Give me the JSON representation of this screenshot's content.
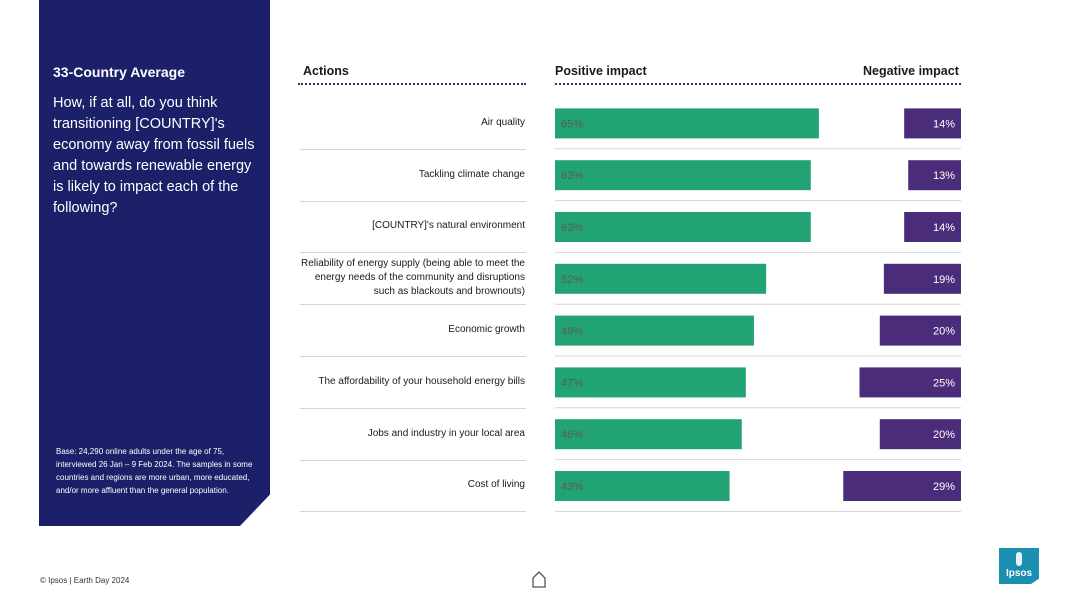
{
  "sidebar": {
    "title": "33-Country Average",
    "question": "How, if at all, do you think transitioning [COUNTRY]'s economy away from fossil fuels and towards renewable energy is likely to impact each of the following?",
    "base_note": "Base: 24,290 online adults under the age of 75, interviewed 26 Jan – 9 Feb 2024. The samples in some countries and regions are more urban, more educated, and/or more affluent than the general population."
  },
  "headers": {
    "actions": "Actions",
    "positive": "Positive impact",
    "negative": "Negative impact"
  },
  "footer": {
    "text": "© Ipsos | Earth Day 2024"
  },
  "logo": {
    "text": "Ipsos"
  },
  "colors": {
    "sidebar": "#1c2069",
    "positive": "#22a373",
    "negative": "#4b2c7a",
    "logo": "#1a8fb0"
  },
  "chart_data": {
    "type": "bar",
    "title": "33-Country Average",
    "categories": [
      "Air quality",
      "Tackling climate change",
      "[COUNTRY]'s natural environment",
      "Reliability of energy supply (being able to meet the energy needs of the community and disruptions such as blackouts and brownouts)",
      "Economic growth",
      "The affordability of your household energy bills",
      "Jobs and industry in your local area",
      "Cost of living"
    ],
    "series": [
      {
        "name": "Positive impact",
        "values": [
          65,
          63,
          63,
          52,
          49,
          47,
          46,
          43
        ],
        "labels": [
          "65%",
          "63%",
          "63%",
          "52%",
          "49%",
          "47%",
          "46%",
          "43%"
        ]
      },
      {
        "name": "Negative impact",
        "values": [
          14,
          13,
          14,
          19,
          20,
          25,
          20,
          29
        ],
        "labels": [
          "14%",
          "13%",
          "14%",
          "19%",
          "20%",
          "25%",
          "20%",
          "29%"
        ]
      }
    ]
  }
}
